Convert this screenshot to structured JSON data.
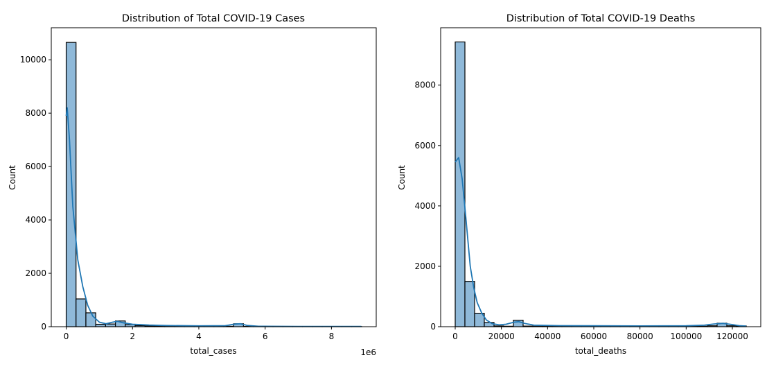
{
  "chart_data": [
    {
      "type": "bar",
      "title": "Distribution of Total COVID-19 Cases",
      "xlabel": "total_cases",
      "ylabel": "Count",
      "x_offset_label": "1e6",
      "x_scale": 1000000,
      "xlim": [
        -0.45,
        9.35
      ],
      "ylim": [
        0,
        11200
      ],
      "xticks": [
        0,
        2,
        4,
        6,
        8
      ],
      "yticks": [
        0,
        2000,
        4000,
        6000,
        8000,
        10000
      ],
      "bin_start": 0,
      "bin_width": 0.297,
      "counts": [
        10650,
        1040,
        520,
        90,
        100,
        215,
        80,
        40,
        30,
        25,
        20,
        15,
        12,
        10,
        10,
        10,
        15,
        110,
        10,
        5,
        5,
        5,
        5,
        5,
        5,
        5,
        5,
        5,
        5,
        5
      ],
      "kde": [
        [
          0,
          7900
        ],
        [
          0.03,
          8200
        ],
        [
          0.1,
          7000
        ],
        [
          0.2,
          4500
        ],
        [
          0.35,
          2500
        ],
        [
          0.5,
          1500
        ],
        [
          0.65,
          800
        ],
        [
          0.8,
          400
        ],
        [
          1.0,
          170
        ],
        [
          1.2,
          110
        ],
        [
          1.4,
          170
        ],
        [
          1.55,
          200
        ],
        [
          1.7,
          150
        ],
        [
          2.0,
          90
        ],
        [
          2.5,
          60
        ],
        [
          3.0,
          45
        ],
        [
          4.0,
          30
        ],
        [
          4.8,
          40
        ],
        [
          5.1,
          100
        ],
        [
          5.25,
          110
        ],
        [
          5.45,
          50
        ],
        [
          5.8,
          15
        ],
        [
          7,
          10
        ],
        [
          8.9,
          10
        ]
      ],
      "grid": false
    },
    {
      "type": "bar",
      "title": "Distribution of Total COVID-19 Deaths",
      "xlabel": "total_deaths",
      "ylabel": "Count",
      "x_scale": 1,
      "xlim": [
        -6300,
        132300
      ],
      "ylim": [
        0,
        9900
      ],
      "xticks": [
        0,
        20000,
        40000,
        60000,
        80000,
        100000,
        120000
      ],
      "yticks": [
        0,
        2000,
        4000,
        6000,
        8000
      ],
      "bin_start": 0,
      "bin_width": 4200,
      "counts": [
        9430,
        1500,
        445,
        140,
        25,
        15,
        215,
        20,
        15,
        15,
        15,
        15,
        15,
        10,
        10,
        10,
        10,
        10,
        10,
        10,
        10,
        10,
        10,
        10,
        10,
        15,
        30,
        115,
        30,
        25
      ],
      "kde": [
        [
          0,
          5450
        ],
        [
          1500,
          5600
        ],
        [
          3000,
          4900
        ],
        [
          4500,
          3700
        ],
        [
          6500,
          2000
        ],
        [
          8000,
          1300
        ],
        [
          9500,
          800
        ],
        [
          11500,
          450
        ],
        [
          13500,
          220
        ],
        [
          16000,
          100
        ],
        [
          19000,
          60
        ],
        [
          22000,
          80
        ],
        [
          25500,
          150
        ],
        [
          27500,
          165
        ],
        [
          30000,
          110
        ],
        [
          34000,
          50
        ],
        [
          45000,
          35
        ],
        [
          60000,
          30
        ],
        [
          80000,
          25
        ],
        [
          100000,
          30
        ],
        [
          108000,
          50
        ],
        [
          112000,
          90
        ],
        [
          116000,
          110
        ],
        [
          120000,
          70
        ],
        [
          123000,
          35
        ],
        [
          126000,
          20
        ]
      ],
      "grid": false
    }
  ],
  "colors": {
    "bar_fill": "#8fb9d9",
    "bar_edge": "#000000",
    "kde_line": "#1f77b4"
  }
}
